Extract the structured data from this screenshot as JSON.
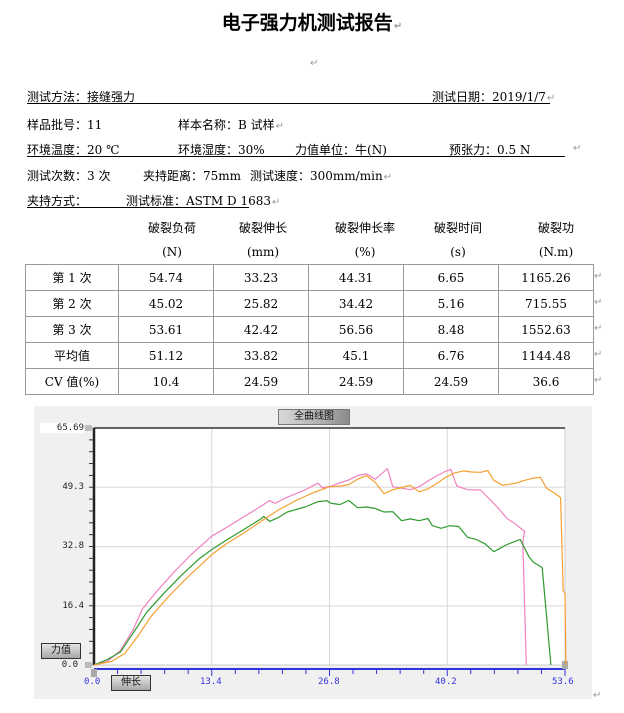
{
  "document": {
    "title": "电子强力机测试报告",
    "paragraph_mark": "↵"
  },
  "info": {
    "test_method_label": "测试方法：",
    "test_method_value": "接缝强力",
    "test_date_label": "测试日期：",
    "test_date_value": "2019/1/7",
    "batch_no_label": "样品批号：",
    "batch_no_value": "11",
    "sample_name_label": "样本名称：",
    "sample_name_value": "B 试样",
    "env_temp_label": "环境温度：",
    "env_temp_value": "20 ℃",
    "env_humidity_label": "环境湿度：",
    "env_humidity_value": "30%",
    "force_unit_label": "力值单位：",
    "force_unit_value": "牛(N)",
    "pretension_label": "预张力：",
    "pretension_value": "0.5 N",
    "test_count_label": "测试次数：",
    "test_count_value": "3 次",
    "clamp_distance_label": "夹持距离：",
    "clamp_distance_value": "75mm",
    "test_speed_label": "测试速度：",
    "test_speed_value": "300mm/min",
    "clamp_method_label": "夹持方式：",
    "clamp_method_value": "",
    "test_standard_label": "测试标准：",
    "test_standard_value": "ASTM D 1683"
  },
  "results": {
    "columns": [
      {
        "name": "破裂负荷",
        "unit": "(N)"
      },
      {
        "name": "破裂伸长",
        "unit": "(mm)"
      },
      {
        "name": "破裂伸长率",
        "unit": "(%)"
      },
      {
        "name": "破裂时间",
        "unit": "(s)"
      },
      {
        "name": "破裂功",
        "unit": "(N.m)"
      }
    ],
    "rows": [
      {
        "label": "第 1 次",
        "values": [
          "54.74",
          "33.23",
          "44.31",
          "6.65",
          "1165.26"
        ]
      },
      {
        "label": "第 2 次",
        "values": [
          "45.02",
          "25.82",
          "34.42",
          "5.16",
          "715.55"
        ]
      },
      {
        "label": "第 3 次",
        "values": [
          "53.61",
          "42.42",
          "56.56",
          "8.48",
          "1552.63"
        ]
      },
      {
        "label": "平均值",
        "values": [
          "51.12",
          "33.82",
          "45.1",
          "6.76",
          "1144.48"
        ]
      },
      {
        "label": "CV 值(%)",
        "values": [
          "10.4",
          "24.59",
          "24.59",
          "24.59",
          "36.6"
        ]
      }
    ]
  },
  "chart": {
    "title_button": "全曲线图",
    "y_button": "力值",
    "x_button": "伸长",
    "colors": {
      "background": "#f0f0f0",
      "plot": "#ffffff",
      "grid": "#d8d8d8",
      "x_axis": "#3333dd"
    }
  },
  "chart_data": {
    "type": "line",
    "title": "全曲线图",
    "xlabel": "伸长",
    "ylabel": "力值",
    "xlim": [
      0.0,
      53.6
    ],
    "ylim": [
      0.0,
      65.69
    ],
    "x_ticks": [
      "0.0",
      "13.4",
      "26.8",
      "40.2",
      "53.6"
    ],
    "y_ticks": [
      "65.69",
      "49.3",
      "32.8",
      "16.4",
      "0.0"
    ],
    "grid": true,
    "series": [
      {
        "name": "第 1 次",
        "color": "#f080c0",
        "points": [
          [
            0,
            0
          ],
          [
            1.5,
            1
          ],
          [
            3,
            4
          ],
          [
            4.5,
            10
          ],
          [
            5.5,
            15.5
          ],
          [
            7,
            20
          ],
          [
            9,
            25.5
          ],
          [
            11,
            30.5
          ],
          [
            13.4,
            35.7
          ],
          [
            15,
            38
          ],
          [
            17,
            41
          ],
          [
            19,
            44
          ],
          [
            20,
            45.6
          ],
          [
            20.6,
            44.8
          ],
          [
            22,
            46.5
          ],
          [
            24,
            48.5
          ],
          [
            25,
            49.8
          ],
          [
            25.5,
            50.4
          ],
          [
            26,
            49.1
          ],
          [
            27,
            49.6
          ],
          [
            28,
            50.5
          ],
          [
            29,
            51.3
          ],
          [
            30,
            52.5
          ],
          [
            31,
            53
          ],
          [
            32,
            51.5
          ],
          [
            33.4,
            54.4
          ],
          [
            34,
            49.4
          ],
          [
            35,
            49
          ],
          [
            36,
            48.6
          ],
          [
            37,
            49.4
          ],
          [
            38,
            51
          ],
          [
            39,
            52.4
          ],
          [
            40.1,
            53.8
          ],
          [
            40.6,
            54.2
          ],
          [
            41.3,
            49.6
          ],
          [
            42.5,
            48.6
          ],
          [
            44,
            48.5
          ],
          [
            45,
            46
          ],
          [
            46,
            43.5
          ],
          [
            47,
            40.6
          ],
          [
            48,
            39
          ],
          [
            49,
            37
          ],
          [
            48.8,
            34
          ],
          [
            49.2,
            0
          ]
        ]
      },
      {
        "name": "第 2 次",
        "color": "#2e9a2e",
        "points": [
          [
            0,
            0
          ],
          [
            1.5,
            1.5
          ],
          [
            3,
            3.6
          ],
          [
            4.5,
            9
          ],
          [
            6,
            14.6
          ],
          [
            8,
            20
          ],
          [
            10,
            25
          ],
          [
            12,
            29.5
          ],
          [
            13.4,
            32
          ],
          [
            15,
            34.5
          ],
          [
            17,
            37.5
          ],
          [
            19,
            40.5
          ],
          [
            19.3,
            41.2
          ],
          [
            20,
            39.8
          ],
          [
            21,
            40.9
          ],
          [
            22,
            42.4
          ],
          [
            24,
            43.8
          ],
          [
            25.5,
            45.3
          ],
          [
            26.5,
            45.5
          ],
          [
            27,
            44.8
          ],
          [
            28,
            44.5
          ],
          [
            29,
            45.6
          ],
          [
            30,
            43.6
          ],
          [
            31,
            43.8
          ],
          [
            32,
            43.4
          ],
          [
            33,
            42.4
          ],
          [
            34,
            42.5
          ],
          [
            35,
            40
          ],
          [
            36,
            40.5
          ],
          [
            37,
            40
          ],
          [
            38,
            40.6
          ],
          [
            38.5,
            38.6
          ],
          [
            39.5,
            37.9
          ],
          [
            40.5,
            38.6
          ],
          [
            41.5,
            38.4
          ],
          [
            42.5,
            35.4
          ],
          [
            43.5,
            34.8
          ],
          [
            44.5,
            33.6
          ],
          [
            45.5,
            31.4
          ],
          [
            47,
            33.4
          ],
          [
            48.5,
            34.8
          ],
          [
            49.5,
            30
          ],
          [
            50,
            28.5
          ],
          [
            51,
            27
          ],
          [
            52,
            0
          ]
        ]
      },
      {
        "name": "第 3 次",
        "color": "#f5a030",
        "points": [
          [
            0,
            0
          ],
          [
            2,
            1
          ],
          [
            3.5,
            3.2
          ],
          [
            5,
            8
          ],
          [
            6.5,
            13.5
          ],
          [
            8.5,
            19
          ],
          [
            10.5,
            24
          ],
          [
            12.5,
            28.5
          ],
          [
            13.4,
            30.6
          ],
          [
            15,
            33.5
          ],
          [
            17,
            36.5
          ],
          [
            19,
            39.8
          ],
          [
            21,
            43
          ],
          [
            23,
            45.6
          ],
          [
            25,
            47.8
          ],
          [
            26.8,
            49.4
          ],
          [
            28,
            49.6
          ],
          [
            29,
            50
          ],
          [
            30,
            51.5
          ],
          [
            31,
            52.5
          ],
          [
            32,
            50.6
          ],
          [
            33,
            47.5
          ],
          [
            34,
            48.6
          ],
          [
            35,
            49.2
          ],
          [
            36,
            49.8
          ],
          [
            37,
            48
          ],
          [
            38,
            48.8
          ],
          [
            39,
            50.3
          ],
          [
            40,
            52
          ],
          [
            41,
            53.2
          ],
          [
            42,
            53.8
          ],
          [
            43,
            53.5
          ],
          [
            44,
            53.4
          ],
          [
            44.8,
            53.9
          ],
          [
            45.5,
            51.2
          ],
          [
            46.5,
            49.8
          ],
          [
            48,
            50.4
          ],
          [
            49,
            51.2
          ],
          [
            50,
            51.8
          ],
          [
            50.8,
            52
          ],
          [
            51.5,
            49
          ],
          [
            52.5,
            47.5
          ],
          [
            53.1,
            46.4
          ],
          [
            53.4,
            20.5
          ],
          [
            53.6,
            20
          ],
          [
            53.7,
            0
          ]
        ]
      }
    ]
  }
}
